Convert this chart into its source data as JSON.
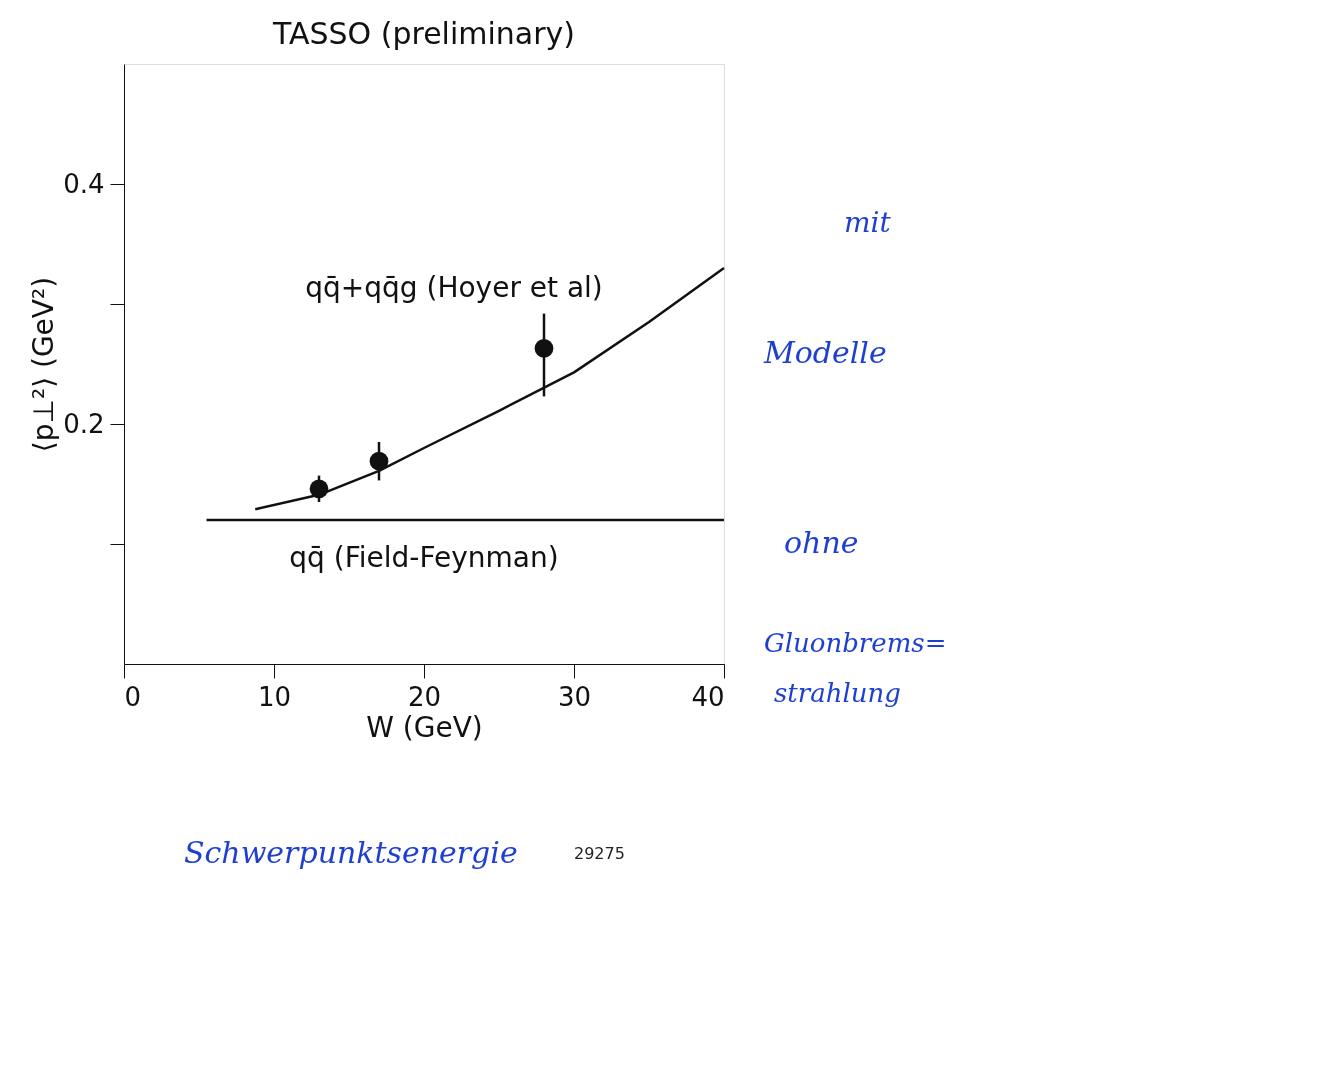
{
  "chart_data": {
    "type": "scatter",
    "title": "TASSO (preliminary)",
    "xlabel": "W (GeV)",
    "ylabel": "⟨p⊥²⟩ (GeV²)",
    "xlim": [
      0,
      40
    ],
    "ylim": [
      0,
      0.5
    ],
    "xticks": [
      0,
      10,
      20,
      30,
      40
    ],
    "yticks": [
      {
        "value": 0.1,
        "label": null
      },
      0.2,
      {
        "value": 0.3,
        "label": null
      },
      0.4
    ],
    "grid": false,
    "legend": false,
    "series": [
      {
        "type": "scatter",
        "marker": "circle",
        "color": "#111111",
        "x": [
          13,
          17,
          28
        ],
        "values": [
          0.146,
          0.169,
          0.263
        ],
        "errors": [
          0.011,
          0.016,
          [
            0.223,
            0.292
          ]
        ]
      },
      {
        "type": "line",
        "name": "qq̄+qq̄g (Hoyer et al)",
        "color": "#111111",
        "line_style": "solid",
        "x": [
          8.75,
          13,
          17,
          20,
          25,
          30,
          35,
          40
        ],
        "values": [
          0.129,
          0.141,
          0.161,
          0.18,
          0.211,
          0.243,
          0.285,
          0.33
        ]
      },
      {
        "type": "line",
        "name": "qq̄ (Field-Feynman)",
        "color": "#111111",
        "line_style": "solid",
        "x": [
          5.5,
          40
        ],
        "values": [
          0.12,
          0.12
        ]
      }
    ],
    "annotations": [
      "mit",
      "Modelle",
      "ohne",
      "Gluonbrems=",
      "strahlung",
      "Schwerpunktsenergie",
      "29275"
    ]
  }
}
